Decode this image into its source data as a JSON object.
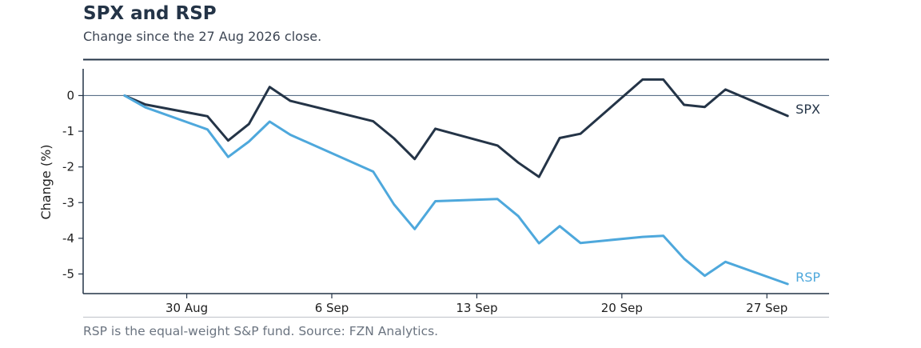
{
  "header": {
    "title": "SPX and RSP",
    "subtitle": "Change since the 27 Aug 2026 close."
  },
  "footer": {
    "note": "RSP is the equal-weight S&P fund. Source: FZN Analytics."
  },
  "colors": {
    "spx": "#243447",
    "rsp": "#4ea8dc",
    "axis": "#243447",
    "zero_line": "#5a7088",
    "footer_rule": "#c8cbd0"
  },
  "chart_data": {
    "type": "line",
    "title": "SPX and RSP",
    "subtitle": "Change since the 27 Aug 2026 close.",
    "xlabel": "",
    "ylabel": "Change (%)",
    "x_axis_type": "date",
    "xlim": [
      "2026-08-25",
      "2026-09-30"
    ],
    "ylim": [
      -5.55,
      0.75
    ],
    "x_ticks": [
      {
        "date": "2026-08-30",
        "label": "30 Aug"
      },
      {
        "date": "2026-09-06",
        "label": "6 Sep"
      },
      {
        "date": "2026-09-13",
        "label": "13 Sep"
      },
      {
        "date": "2026-09-20",
        "label": "20 Sep"
      },
      {
        "date": "2026-09-27",
        "label": "27 Sep"
      }
    ],
    "y_ticks": [
      0,
      -1,
      -2,
      -3,
      -4,
      -5
    ],
    "y_tick_labels": [
      "0",
      "-1",
      "-2",
      "-3",
      "-4",
      "-5"
    ],
    "reference_line_y": 0,
    "grid": false,
    "legend": "direct labels at line ends",
    "series": [
      {
        "name": "SPX",
        "label": "SPX",
        "color": "#243447",
        "points": [
          {
            "x": "2026-08-27",
            "y": 0
          },
          {
            "x": "2026-08-28",
            "y": -0.25
          },
          {
            "x": "2026-08-31",
            "y": -0.58
          },
          {
            "x": "2026-09-01",
            "y": -1.26
          },
          {
            "x": "2026-09-02",
            "y": -0.8
          },
          {
            "x": "2026-09-03",
            "y": 0.24
          },
          {
            "x": "2026-09-04",
            "y": -0.15
          },
          {
            "x": "2026-09-08",
            "y": -0.72
          },
          {
            "x": "2026-09-09",
            "y": -1.2
          },
          {
            "x": "2026-09-10",
            "y": -1.78
          },
          {
            "x": "2026-09-11",
            "y": -0.93
          },
          {
            "x": "2026-09-14",
            "y": -1.4
          },
          {
            "x": "2026-09-15",
            "y": -1.88
          },
          {
            "x": "2026-09-16",
            "y": -2.28
          },
          {
            "x": "2026-09-17",
            "y": -1.19
          },
          {
            "x": "2026-09-18",
            "y": -1.07
          },
          {
            "x": "2026-09-21",
            "y": 0.45
          },
          {
            "x": "2026-09-22",
            "y": 0.45
          },
          {
            "x": "2026-09-23",
            "y": -0.26
          },
          {
            "x": "2026-09-24",
            "y": -0.32
          },
          {
            "x": "2026-09-25",
            "y": 0.17
          },
          {
            "x": "2026-09-28",
            "y": -0.57
          }
        ]
      },
      {
        "name": "RSP",
        "label": "RSP",
        "color": "#4ea8dc",
        "points": [
          {
            "x": "2026-08-27",
            "y": 0
          },
          {
            "x": "2026-08-28",
            "y": -0.33
          },
          {
            "x": "2026-08-31",
            "y": -0.95
          },
          {
            "x": "2026-09-01",
            "y": -1.72
          },
          {
            "x": "2026-09-02",
            "y": -1.29
          },
          {
            "x": "2026-09-03",
            "y": -0.73
          },
          {
            "x": "2026-09-04",
            "y": -1.1
          },
          {
            "x": "2026-09-08",
            "y": -2.13
          },
          {
            "x": "2026-09-09",
            "y": -3.05
          },
          {
            "x": "2026-09-10",
            "y": -3.74
          },
          {
            "x": "2026-09-11",
            "y": -2.96
          },
          {
            "x": "2026-09-14",
            "y": -2.9
          },
          {
            "x": "2026-09-15",
            "y": -3.38
          },
          {
            "x": "2026-09-16",
            "y": -4.14
          },
          {
            "x": "2026-09-17",
            "y": -3.66
          },
          {
            "x": "2026-09-18",
            "y": -4.13
          },
          {
            "x": "2026-09-21",
            "y": -3.96
          },
          {
            "x": "2026-09-22",
            "y": -3.93
          },
          {
            "x": "2026-09-23",
            "y": -4.57
          },
          {
            "x": "2026-09-24",
            "y": -5.05
          },
          {
            "x": "2026-09-25",
            "y": -4.66
          },
          {
            "x": "2026-09-28",
            "y": -5.28
          }
        ]
      }
    ]
  }
}
